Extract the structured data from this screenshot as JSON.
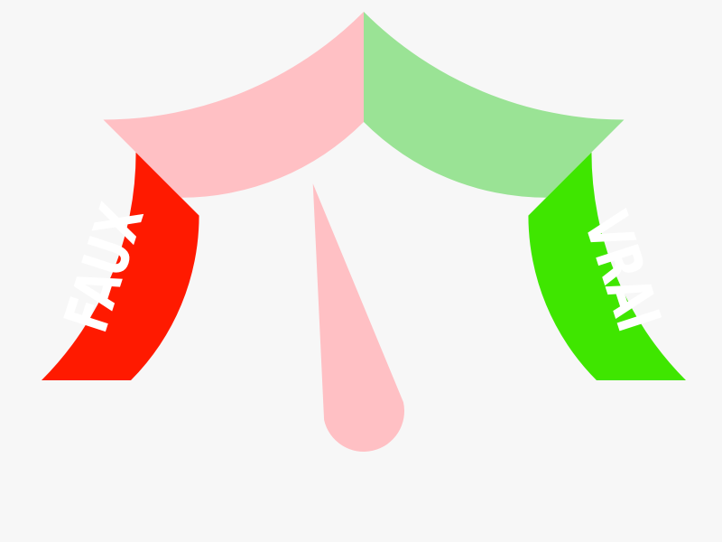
{
  "gauge": {
    "labels": {
      "left": "FAUX",
      "right": "VRAI"
    },
    "segments": [
      {
        "name": "faux-strong",
        "color": "#ff1a00"
      },
      {
        "name": "faux-weak",
        "color": "#ffc0c4"
      },
      {
        "name": "vrai-weak",
        "color": "#9ae395"
      },
      {
        "name": "vrai-strong",
        "color": "#3fe600"
      }
    ],
    "needle_color": "#ffc0c4",
    "needle_level_fraction": 0.43,
    "colors": {
      "background": "#f7f7f7"
    }
  }
}
